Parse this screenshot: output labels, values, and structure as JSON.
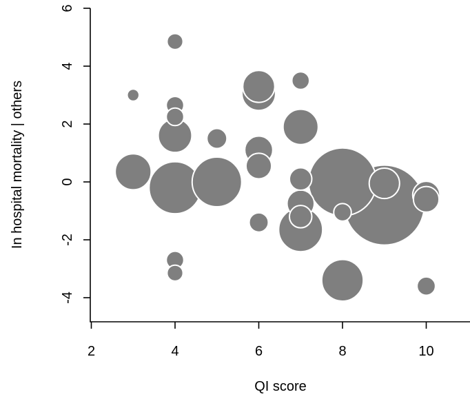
{
  "chart_data": {
    "type": "scatter",
    "xlabel": "QI score",
    "ylabel": "In hospital mortality | others",
    "xlim": [
      2,
      11
    ],
    "ylim": [
      -5,
      6
    ],
    "x_ticks": [
      2,
      4,
      6,
      8,
      10
    ],
    "y_ticks": [
      -4,
      -2,
      0,
      2,
      4,
      6
    ],
    "grid": false,
    "marker_color": "#7f7f7f",
    "marker_outline_color": "#ffffff",
    "series": [
      {
        "points": [
          {
            "x": 3,
            "y": 3.0,
            "size": 0.15
          },
          {
            "x": 3,
            "y": 0.35,
            "size": 0.45
          },
          {
            "x": 4,
            "y": 4.85,
            "size": 0.2
          },
          {
            "x": 4,
            "y": 2.65,
            "size": 0.22
          },
          {
            "x": 4,
            "y": 2.25,
            "size": 0.22
          },
          {
            "x": 4,
            "y": 1.6,
            "size": 0.42
          },
          {
            "x": 4,
            "y": -0.2,
            "size": 0.65
          },
          {
            "x": 4,
            "y": -2.7,
            "size": 0.22
          },
          {
            "x": 4,
            "y": -3.15,
            "size": 0.2
          },
          {
            "x": 5,
            "y": 1.5,
            "size": 0.25
          },
          {
            "x": 5,
            "y": 0.0,
            "size": 0.62
          },
          {
            "x": 6,
            "y": 3.3,
            "size": 0.4
          },
          {
            "x": 6,
            "y": 3.05,
            "size": 0.42
          },
          {
            "x": 6,
            "y": 1.1,
            "size": 0.35
          },
          {
            "x": 6,
            "y": 0.55,
            "size": 0.32
          },
          {
            "x": 6,
            "y": -1.4,
            "size": 0.24
          },
          {
            "x": 7,
            "y": 3.5,
            "size": 0.22
          },
          {
            "x": 7,
            "y": 1.9,
            "size": 0.44
          },
          {
            "x": 7,
            "y": 0.1,
            "size": 0.28
          },
          {
            "x": 7,
            "y": -0.75,
            "size": 0.34
          },
          {
            "x": 7,
            "y": -1.2,
            "size": 0.28
          },
          {
            "x": 7,
            "y": -1.65,
            "size": 0.55
          },
          {
            "x": 8,
            "y": 0.0,
            "size": 0.85
          },
          {
            "x": 8,
            "y": -1.05,
            "size": 0.22
          },
          {
            "x": 8,
            "y": -3.4,
            "size": 0.52
          },
          {
            "x": 9,
            "y": -0.05,
            "size": 0.38
          },
          {
            "x": 9,
            "y": -0.8,
            "size": 1.0
          },
          {
            "x": 10,
            "y": -0.45,
            "size": 0.34
          },
          {
            "x": 10,
            "y": -0.6,
            "size": 0.32
          },
          {
            "x": 10,
            "y": -3.6,
            "size": 0.23
          }
        ]
      }
    ]
  }
}
